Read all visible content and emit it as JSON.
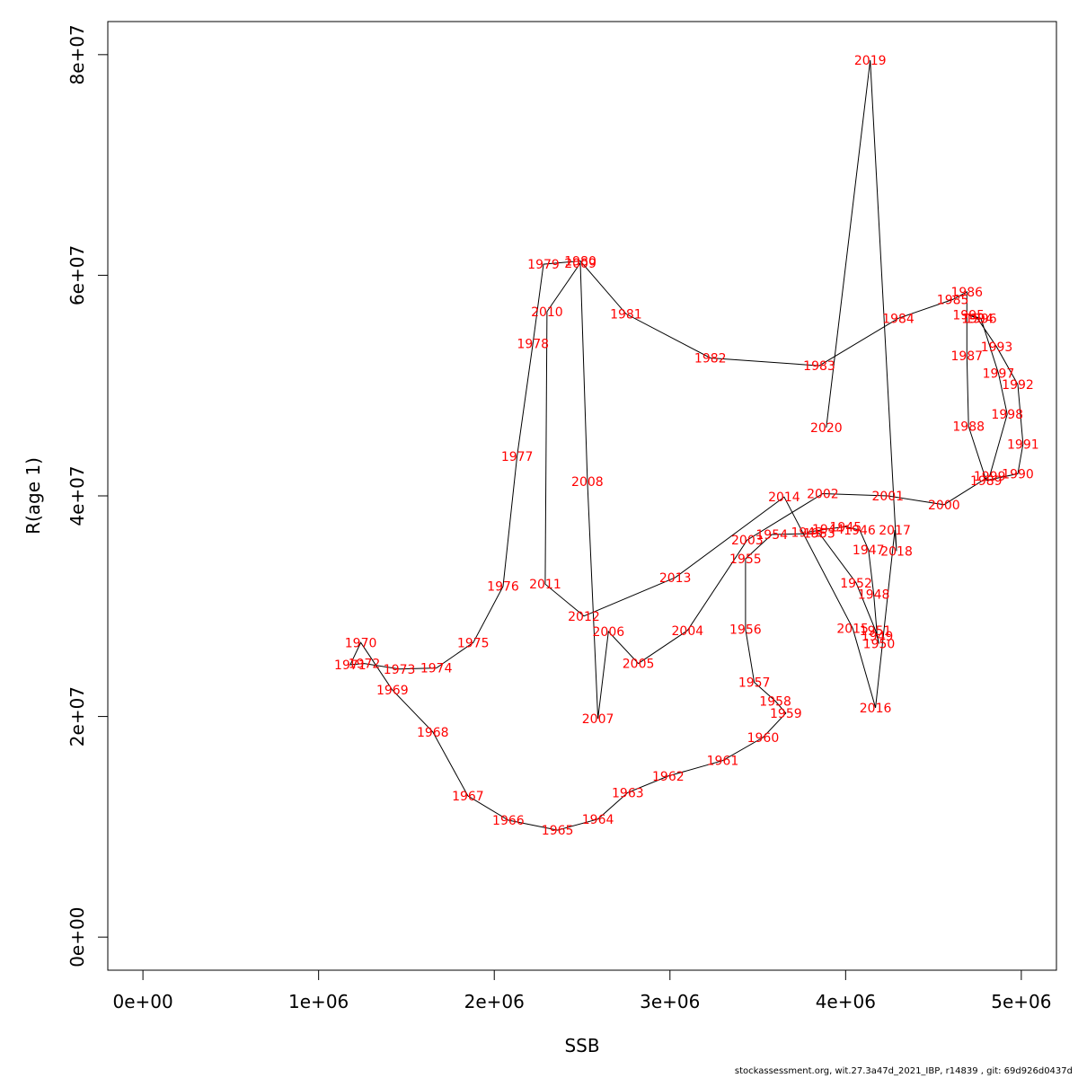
{
  "chart_data": {
    "type": "line",
    "xlabel": "SSB",
    "ylabel": "R(age 1)",
    "xlim": [
      -200000,
      5200000
    ],
    "ylim": [
      -3000000,
      83000000
    ],
    "x_ticks": [
      0,
      1000000,
      2000000,
      3000000,
      4000000,
      5000000
    ],
    "x_tick_labels": [
      "0e+00",
      "1e+06",
      "2e+06",
      "3e+06",
      "4e+06",
      "5e+06"
    ],
    "y_ticks": [
      0,
      20000000,
      40000000,
      60000000,
      80000000
    ],
    "y_tick_labels": [
      "0e+00",
      "2e+07",
      "4e+07",
      "6e+07",
      "8e+07"
    ],
    "label_color": "#ff0000",
    "line_color": "#000000",
    "grid": false,
    "points": [
      {
        "year": "1943",
        "ssb": 3780000,
        "r": 36700000
      },
      {
        "year": "1944",
        "ssb": 3900000,
        "r": 37000000
      },
      {
        "year": "1945",
        "ssb": 4000000,
        "r": 37200000
      },
      {
        "year": "1946",
        "ssb": 4080000,
        "r": 36900000
      },
      {
        "year": "1947",
        "ssb": 4130000,
        "r": 35100000
      },
      {
        "year": "1948",
        "ssb": 4160000,
        "r": 31100000
      },
      {
        "year": "1949",
        "ssb": 4180000,
        "r": 27300000
      },
      {
        "year": "1950",
        "ssb": 4190000,
        "r": 26600000
      },
      {
        "year": "1951",
        "ssb": 4170000,
        "r": 27800000
      },
      {
        "year": "1952",
        "ssb": 4060000,
        "r": 32100000
      },
      {
        "year": "1953",
        "ssb": 3850000,
        "r": 36600000
      },
      {
        "year": "1954",
        "ssb": 3580000,
        "r": 36500000
      },
      {
        "year": "1955",
        "ssb": 3430000,
        "r": 34300000
      },
      {
        "year": "1956",
        "ssb": 3430000,
        "r": 27900000
      },
      {
        "year": "1957",
        "ssb": 3480000,
        "r": 23100000
      },
      {
        "year": "1958",
        "ssb": 3600000,
        "r": 21400000
      },
      {
        "year": "1959",
        "ssb": 3660000,
        "r": 20300000
      },
      {
        "year": "1960",
        "ssb": 3530000,
        "r": 18100000
      },
      {
        "year": "1961",
        "ssb": 3300000,
        "r": 16000000
      },
      {
        "year": "1962",
        "ssb": 2990000,
        "r": 14600000
      },
      {
        "year": "1963",
        "ssb": 2760000,
        "r": 13100000
      },
      {
        "year": "1964",
        "ssb": 2590000,
        "r": 10700000
      },
      {
        "year": "1965",
        "ssb": 2360000,
        "r": 9700000
      },
      {
        "year": "1966",
        "ssb": 2080000,
        "r": 10600000
      },
      {
        "year": "1967",
        "ssb": 1850000,
        "r": 12800000
      },
      {
        "year": "1968",
        "ssb": 1650000,
        "r": 18600000
      },
      {
        "year": "1969",
        "ssb": 1420000,
        "r": 22400000
      },
      {
        "year": "1970",
        "ssb": 1240000,
        "r": 26700000
      },
      {
        "year": "1971",
        "ssb": 1180000,
        "r": 24700000
      },
      {
        "year": "1972",
        "ssb": 1260000,
        "r": 24800000
      },
      {
        "year": "1973",
        "ssb": 1460000,
        "r": 24300000
      },
      {
        "year": "1974",
        "ssb": 1670000,
        "r": 24400000
      },
      {
        "year": "1975",
        "ssb": 1880000,
        "r": 26700000
      },
      {
        "year": "1976",
        "ssb": 2050000,
        "r": 31800000
      },
      {
        "year": "1977",
        "ssb": 2130000,
        "r": 43600000
      },
      {
        "year": "1978",
        "ssb": 2220000,
        "r": 53800000
      },
      {
        "year": "1979",
        "ssb": 2280000,
        "r": 61000000
      },
      {
        "year": "1980",
        "ssb": 2490000,
        "r": 61300000
      },
      {
        "year": "1981",
        "ssb": 2750000,
        "r": 56500000
      },
      {
        "year": "1982",
        "ssb": 3230000,
        "r": 52500000
      },
      {
        "year": "1983",
        "ssb": 3850000,
        "r": 51800000
      },
      {
        "year": "1984",
        "ssb": 4300000,
        "r": 56100000
      },
      {
        "year": "1985",
        "ssb": 4610000,
        "r": 57800000
      },
      {
        "year": "1986",
        "ssb": 4690000,
        "r": 58500000
      },
      {
        "year": "1987",
        "ssb": 4690000,
        "r": 52700000
      },
      {
        "year": "1988",
        "ssb": 4700000,
        "r": 46300000
      },
      {
        "year": "1989",
        "ssb": 4800000,
        "r": 41400000
      },
      {
        "year": "1990",
        "ssb": 4980000,
        "r": 42000000
      },
      {
        "year": "1991",
        "ssb": 5010000,
        "r": 44700000
      },
      {
        "year": "1992",
        "ssb": 4980000,
        "r": 50100000
      },
      {
        "year": "1993",
        "ssb": 4860000,
        "r": 53500000
      },
      {
        "year": "1994",
        "ssb": 4750000,
        "r": 56100000
      },
      {
        "year": "1995",
        "ssb": 4700000,
        "r": 56400000
      },
      {
        "year": "1996",
        "ssb": 4770000,
        "r": 56100000
      },
      {
        "year": "1997",
        "ssb": 4870000,
        "r": 51100000
      },
      {
        "year": "1998",
        "ssb": 4920000,
        "r": 47400000
      },
      {
        "year": "1999",
        "ssb": 4820000,
        "r": 41800000
      },
      {
        "year": "2000",
        "ssb": 4560000,
        "r": 39200000
      },
      {
        "year": "2001",
        "ssb": 4240000,
        "r": 40000000
      },
      {
        "year": "2002",
        "ssb": 3870000,
        "r": 40200000
      },
      {
        "year": "2003",
        "ssb": 3440000,
        "r": 36000000
      },
      {
        "year": "2004",
        "ssb": 3100000,
        "r": 27800000
      },
      {
        "year": "2005",
        "ssb": 2820000,
        "r": 24800000
      },
      {
        "year": "2006",
        "ssb": 2650000,
        "r": 27700000
      },
      {
        "year": "2007",
        "ssb": 2590000,
        "r": 19800000
      },
      {
        "year": "2008",
        "ssb": 2530000,
        "r": 41300000
      },
      {
        "year": "2009",
        "ssb": 2490000,
        "r": 61100000
      },
      {
        "year": "2010",
        "ssb": 2300000,
        "r": 56700000
      },
      {
        "year": "2011",
        "ssb": 2290000,
        "r": 32000000
      },
      {
        "year": "2012",
        "ssb": 2510000,
        "r": 29100000
      },
      {
        "year": "2013",
        "ssb": 3030000,
        "r": 32600000
      },
      {
        "year": "2014",
        "ssb": 3650000,
        "r": 39900000
      },
      {
        "year": "2015",
        "ssb": 4040000,
        "r": 28000000
      },
      {
        "year": "2016",
        "ssb": 4170000,
        "r": 20800000
      },
      {
        "year": "2017",
        "ssb": 4280000,
        "r": 36900000
      },
      {
        "year": "2018",
        "ssb": 4290000,
        "r": 35000000
      },
      {
        "year": "2019",
        "ssb": 4140000,
        "r": 79500000
      },
      {
        "year": "2020",
        "ssb": 3890000,
        "r": 46200000
      }
    ]
  },
  "footer": {
    "text": "stockassessment.org, wit.27.3a47d_2021_IBP, r14839 , git: 69d926d0437d"
  }
}
